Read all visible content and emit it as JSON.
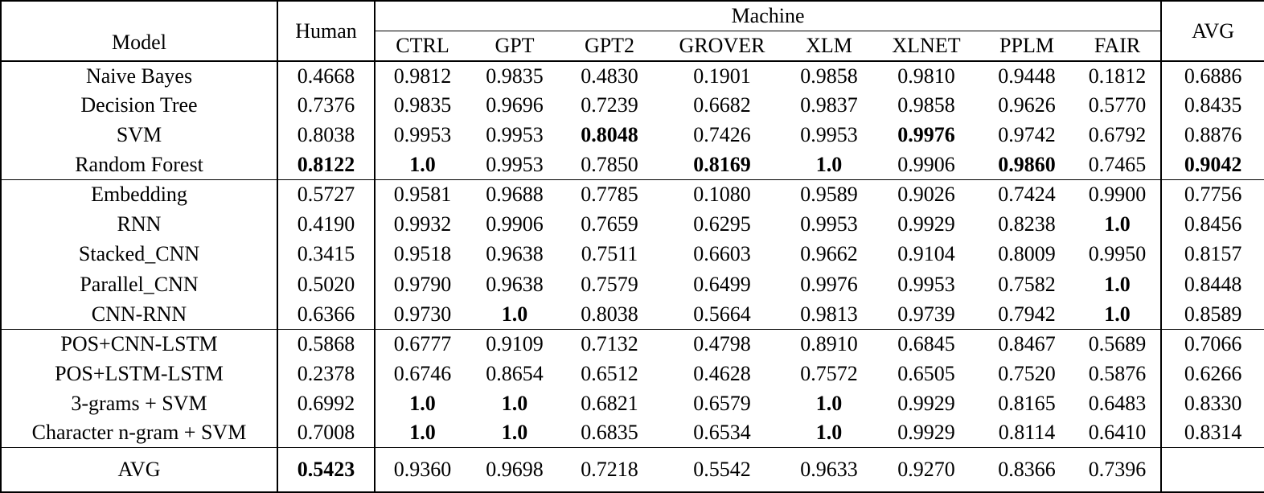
{
  "table": {
    "header": {
      "model_label": "Model",
      "human_label": "Human",
      "machine_label": "Machine",
      "machine_columns": [
        "CTRL",
        "GPT",
        "GPT2",
        "GROVER",
        "XLM",
        "XLNET",
        "PPLM",
        "FAIR"
      ],
      "avg_label": "AVG"
    },
    "column_order": [
      "human",
      "ctrl",
      "gpt",
      "gpt2",
      "grover",
      "xlm",
      "xlnet",
      "pplm",
      "fair",
      "avg"
    ],
    "groups": [
      {
        "rows": [
          {
            "model": "Naive Bayes",
            "model_bold": false,
            "cells": [
              "0.4668",
              "0.9812",
              "0.9835",
              "0.4830",
              "0.1901",
              "0.9858",
              "0.9810",
              "0.9448",
              "0.1812",
              "0.6886"
            ],
            "bold": []
          },
          {
            "model": "Decision Tree",
            "model_bold": false,
            "cells": [
              "0.7376",
              "0.9835",
              "0.9696",
              "0.7239",
              "0.6682",
              "0.9837",
              "0.9858",
              "0.9626",
              "0.5770",
              "0.8435"
            ],
            "bold": []
          },
          {
            "model": "SVM",
            "model_bold": false,
            "cells": [
              "0.8038",
              "0.9953",
              "0.9953",
              "0.8048",
              "0.7426",
              "0.9953",
              "0.9976",
              "0.9742",
              "0.6792",
              "0.8876"
            ],
            "bold": [
              3,
              6
            ]
          },
          {
            "model": "Random Forest",
            "model_bold": false,
            "cells": [
              "0.8122",
              "1.0",
              "0.9953",
              "0.7850",
              "0.8169",
              "1.0",
              "0.9906",
              "0.9860",
              "0.7465",
              "0.9042"
            ],
            "bold": [
              0,
              1,
              4,
              5,
              7,
              9
            ]
          }
        ]
      },
      {
        "rows": [
          {
            "model": "Embedding",
            "model_bold": false,
            "cells": [
              "0.5727",
              "0.9581",
              "0.9688",
              "0.7785",
              "0.1080",
              "0.9589",
              "0.9026",
              "0.7424",
              "0.9900",
              "0.7756"
            ],
            "bold": []
          },
          {
            "model": "RNN",
            "model_bold": false,
            "cells": [
              "0.4190",
              "0.9932",
              "0.9906",
              "0.7659",
              "0.6295",
              "0.9953",
              "0.9929",
              "0.8238",
              "1.0",
              "0.8456"
            ],
            "bold": [
              8
            ]
          },
          {
            "model": "Stacked_CNN",
            "model_bold": false,
            "cells": [
              "0.3415",
              "0.9518",
              "0.9638",
              "0.7511",
              "0.6603",
              "0.9662",
              "0.9104",
              "0.8009",
              "0.9950",
              "0.8157"
            ],
            "bold": []
          },
          {
            "model": "Parallel_CNN",
            "model_bold": false,
            "cells": [
              "0.5020",
              "0.9790",
              "0.9638",
              "0.7579",
              "0.6499",
              "0.9976",
              "0.9953",
              "0.7582",
              "1.0",
              "0.8448"
            ],
            "bold": [
              8
            ]
          },
          {
            "model": "CNN-RNN",
            "model_bold": false,
            "cells": [
              "0.6366",
              "0.9730",
              "1.0",
              "0.8038",
              "0.5664",
              "0.9813",
              "0.9739",
              "0.7942",
              "1.0",
              "0.8589"
            ],
            "bold": [
              2,
              8
            ]
          }
        ]
      },
      {
        "rows": [
          {
            "model": "POS+CNN-LSTM",
            "model_bold": false,
            "cells": [
              "0.5868",
              "0.6777",
              "0.9109",
              "0.7132",
              "0.4798",
              "0.8910",
              "0.6845",
              "0.8467",
              "0.5689",
              "0.7066"
            ],
            "bold": []
          },
          {
            "model": "POS+LSTM-LSTM",
            "model_bold": false,
            "cells": [
              "0.2378",
              "0.6746",
              "0.8654",
              "0.6512",
              "0.4628",
              "0.7572",
              "0.6505",
              "0.7520",
              "0.5876",
              "0.6266"
            ],
            "bold": []
          },
          {
            "model": "3-grams + SVM",
            "model_bold": false,
            "cells": [
              "0.6992",
              "1.0",
              "1.0",
              "0.6821",
              "0.6579",
              "1.0",
              "0.9929",
              "0.8165",
              "0.6483",
              "0.8330"
            ],
            "bold": [
              1,
              2,
              5
            ]
          },
          {
            "model": "Character n-gram + SVM",
            "model_bold": false,
            "cells": [
              "0.7008",
              "1.0",
              "1.0",
              "0.6835",
              "0.6534",
              "1.0",
              "0.9929",
              "0.8114",
              "0.6410",
              "0.8314"
            ],
            "bold": [
              1,
              2,
              5
            ]
          }
        ]
      },
      {
        "rows": [
          {
            "model": "AVG",
            "model_bold": false,
            "cells": [
              "0.5423",
              "0.9360",
              "0.9698",
              "0.7218",
              "0.5542",
              "0.9633",
              "0.9270",
              "0.8366",
              "0.7396",
              ""
            ],
            "bold": [
              0
            ]
          }
        ]
      }
    ]
  }
}
